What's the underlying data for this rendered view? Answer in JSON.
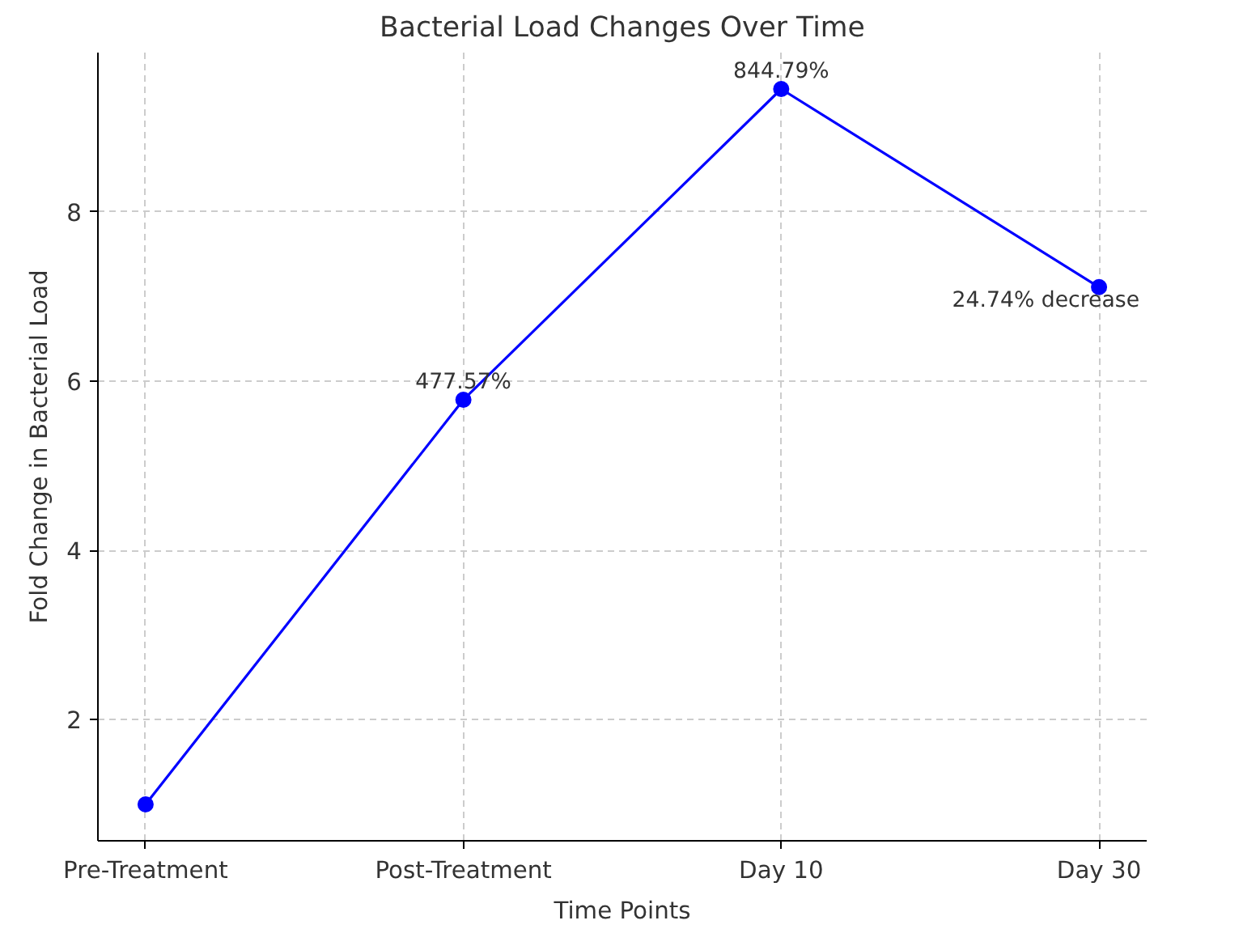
{
  "chart_data": {
    "type": "line",
    "title": "Bacterial Load Changes Over Time",
    "xlabel": "Time Points",
    "ylabel": "Fold Change in Bacterial Load",
    "categories": [
      "Pre-Treatment",
      "Post-Treatment",
      "Day 10",
      "Day 30"
    ],
    "series": [
      {
        "color": "#0000ff",
        "values": [
          1.0,
          5.78,
          9.45,
          7.11
        ]
      }
    ],
    "ylim": [
      0.57,
      9.88
    ],
    "yticks": [
      2,
      4,
      6,
      8
    ],
    "grid": true,
    "marker": "circle",
    "line_style": "solid",
    "annotations": [
      {
        "text": "477.57%",
        "x": "Post-Treatment",
        "y": 5.78
      },
      {
        "text": "844.79%",
        "x": "Day 10",
        "y": 9.45
      },
      {
        "text": "24.74% decrease",
        "x": "Day 30",
        "y": 7.11
      }
    ]
  }
}
